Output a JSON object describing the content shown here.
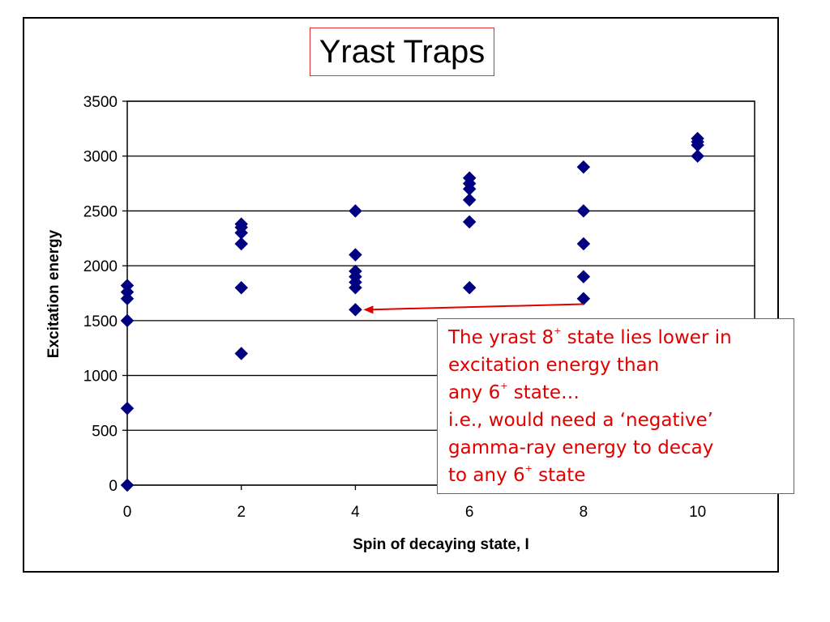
{
  "chart_data": {
    "type": "scatter",
    "title": "Yrast Traps",
    "xlabel": "Spin of decaying state, I",
    "ylabel": "Excitation energy",
    "xlim": [
      0,
      11
    ],
    "ylim": [
      0,
      3500
    ],
    "xticks": [
      "0",
      "2",
      "4",
      "6",
      "8",
      "10"
    ],
    "yticks": [
      "0",
      "500",
      "1000",
      "1500",
      "2000",
      "2500",
      "3000",
      "3500"
    ],
    "grid": "horizontal",
    "marker_color": "#000080",
    "series": [
      {
        "points": [
          [
            0,
            0
          ],
          [
            0,
            700
          ],
          [
            0,
            1500
          ],
          [
            0,
            1700
          ],
          [
            0,
            1760
          ],
          [
            0,
            1820
          ],
          [
            2,
            1200
          ],
          [
            2,
            1800
          ],
          [
            2,
            2200
          ],
          [
            2,
            2300
          ],
          [
            2,
            2350
          ],
          [
            2,
            2380
          ],
          [
            4,
            1600
          ],
          [
            4,
            1800
          ],
          [
            4,
            1850
          ],
          [
            4,
            1900
          ],
          [
            4,
            1950
          ],
          [
            4,
            2100
          ],
          [
            4,
            2500
          ],
          [
            6,
            1800
          ],
          [
            6,
            2400
          ],
          [
            6,
            2600
          ],
          [
            6,
            2700
          ],
          [
            6,
            2750
          ],
          [
            6,
            2800
          ],
          [
            8,
            1700
          ],
          [
            8,
            1900
          ],
          [
            8,
            2200
          ],
          [
            8,
            2500
          ],
          [
            8,
            2900
          ],
          [
            10,
            3000
          ],
          [
            10,
            3100
          ],
          [
            10,
            3130
          ],
          [
            10,
            3160
          ]
        ]
      }
    ],
    "annotation_arrow": {
      "from": [
        8,
        1650
      ],
      "to": [
        4,
        1600
      ],
      "color": "#e00000"
    }
  },
  "note": {
    "lines": [
      {
        "pre": "The yrast 8",
        "sup": "+",
        "post": " state lies lower in"
      },
      {
        "pre": "excitation energy than",
        "sup": "",
        "post": ""
      },
      {
        "pre": "any 6",
        "sup": "+",
        "post": " state…"
      },
      {
        "pre": "i.e., would need a ‘negative’",
        "sup": "",
        "post": ""
      },
      {
        "pre": "gamma-ray energy to decay",
        "sup": "",
        "post": ""
      },
      {
        "pre": "to any 6",
        "sup": "+",
        "post": " state"
      }
    ]
  }
}
